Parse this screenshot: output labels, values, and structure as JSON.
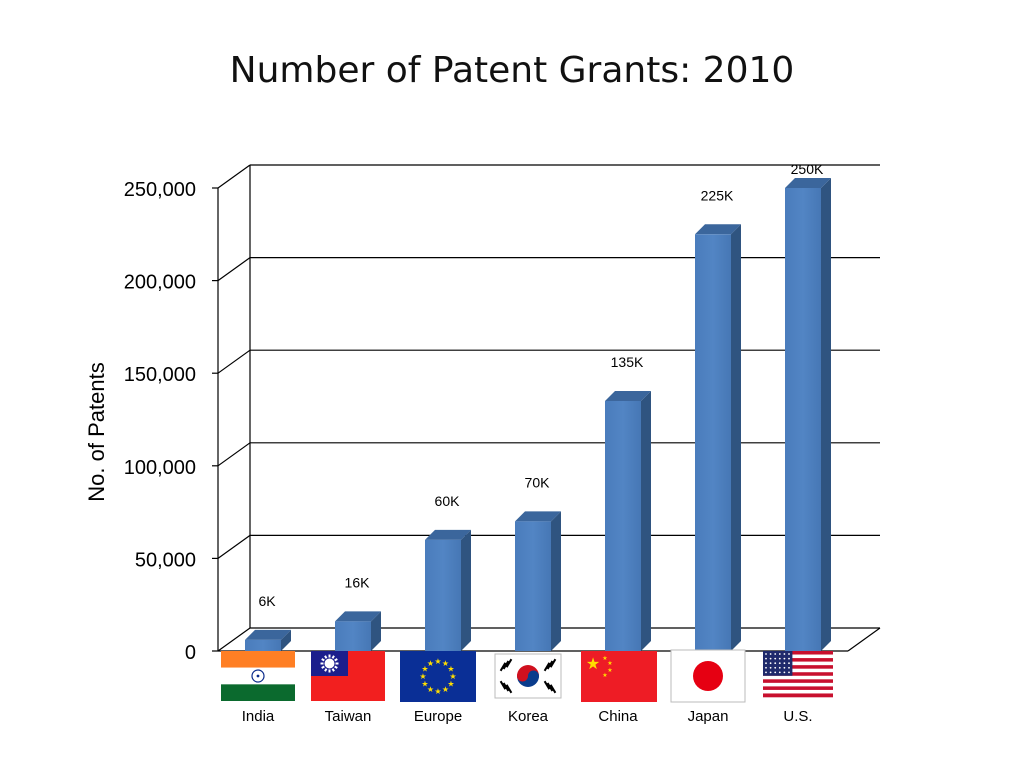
{
  "title": "Number of Patent Grants: 2010",
  "chart_data": {
    "type": "bar",
    "title": "Number of Patent Grants: 2010",
    "ylabel": "No. of Patents",
    "xlabel": "",
    "ylim": [
      0,
      250000
    ],
    "yticks": [
      0,
      50000,
      100000,
      150000,
      200000,
      250000
    ],
    "ytick_labels": [
      "0",
      "50,000",
      "100,000",
      "150,000",
      "200,000",
      "250,000"
    ],
    "categories": [
      "India",
      "Taiwan",
      "Europe",
      "Korea",
      "China",
      "Japan",
      "U.S."
    ],
    "values": [
      6000,
      16000,
      60000,
      70000,
      135000,
      225000,
      250000
    ],
    "data_labels": [
      "6K",
      "16K",
      "60K",
      "70K",
      "135K",
      "225K",
      "250K"
    ],
    "flags": [
      "india-flag",
      "taiwan-flag",
      "europe-flag",
      "korea-flag",
      "china-flag",
      "japan-flag",
      "us-flag"
    ],
    "grid": true,
    "three_d": true,
    "bar_color": "#4f81bd"
  }
}
